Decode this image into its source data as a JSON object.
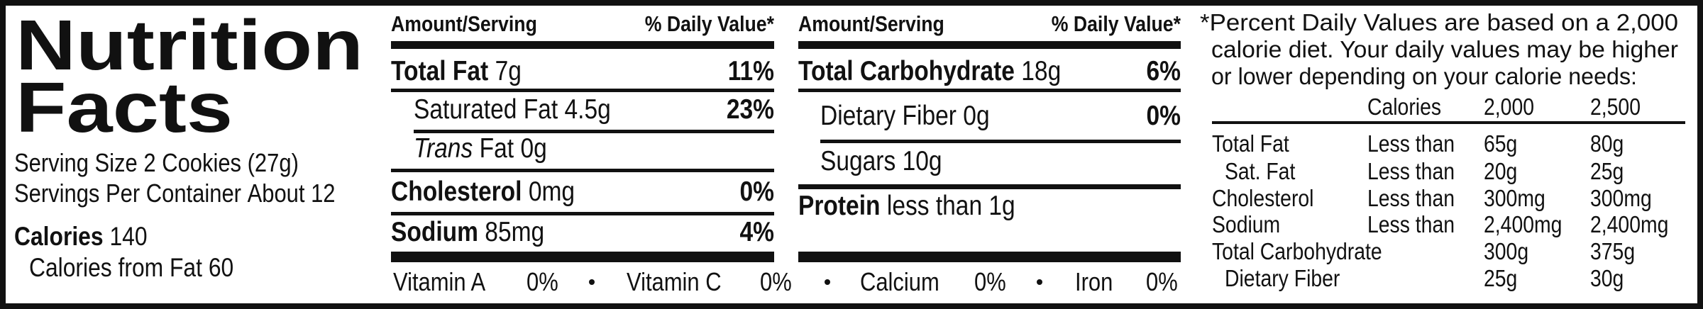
{
  "title": [
    "Nutrition",
    "Facts"
  ],
  "serving": {
    "size_label": "Serving Size",
    "size": "2 Cookies (27g)",
    "per_container_label": "Servings Per Container",
    "per_container": "About 12"
  },
  "calories": {
    "label": "Calories",
    "value": "140",
    "from_fat_label": "Calories from Fat",
    "from_fat": "60"
  },
  "columns": [
    {
      "header": {
        "amount": "Amount/Serving",
        "dv": "% Daily Value*"
      },
      "rows": [
        {
          "name": "Total Fat",
          "amount": "7g",
          "dv": "11%"
        },
        {
          "name": "Saturated Fat",
          "amount": "4.5g",
          "dv": "23%"
        },
        {
          "name_italic": "Trans",
          "name": "Fat",
          "amount": "0g"
        },
        {
          "name": "Cholesterol",
          "amount": "0mg",
          "dv": "0%"
        },
        {
          "name": "Sodium",
          "amount": "85mg",
          "dv": "4%"
        }
      ]
    },
    {
      "header": {
        "amount": "Amount/Serving",
        "dv": "% Daily Value*"
      },
      "rows": [
        {
          "name": "Total Carbohydrate",
          "amount": "18g",
          "dv": "6%"
        },
        {
          "name": "Dietary Fiber",
          "amount": "0g",
          "dv": "0%"
        },
        {
          "name": "Sugars",
          "amount": "10g"
        },
        {
          "name": "Protein",
          "amount": "less than 1g"
        }
      ]
    }
  ],
  "vitamins": [
    {
      "name": "Vitamin A",
      "dv": "0%"
    },
    {
      "name": "Vitamin C",
      "dv": "0%"
    },
    {
      "name": "Calcium",
      "dv": "0%"
    },
    {
      "name": "Iron",
      "dv": "0%"
    }
  ],
  "footnote": [
    "*Percent Daily Values are based on a 2,000",
    "calorie diet. Your daily values may be higher",
    "or lower depending on your calorie needs:"
  ],
  "daily_table": {
    "calories_label": "Calories",
    "levels": [
      "2,000",
      "2,500"
    ],
    "rows": [
      {
        "nutrient": "Total Fat",
        "limit": "Less than",
        "values": [
          "65g",
          "80g"
        ]
      },
      {
        "nutrient": "Sat. Fat",
        "limit": "Less than",
        "values": [
          "20g",
          "25g"
        ]
      },
      {
        "nutrient": "Cholesterol",
        "limit": "Less than",
        "values": [
          "300mg",
          "300mg"
        ]
      },
      {
        "nutrient": "Sodium",
        "limit": "Less than",
        "values": [
          "2,400mg",
          "2,400mg"
        ]
      },
      {
        "nutrient": "Total Carbohydrate",
        "values": [
          "300g",
          "375g"
        ]
      },
      {
        "nutrient": "Dietary Fiber",
        "values": [
          "25g",
          "30g"
        ]
      }
    ]
  }
}
